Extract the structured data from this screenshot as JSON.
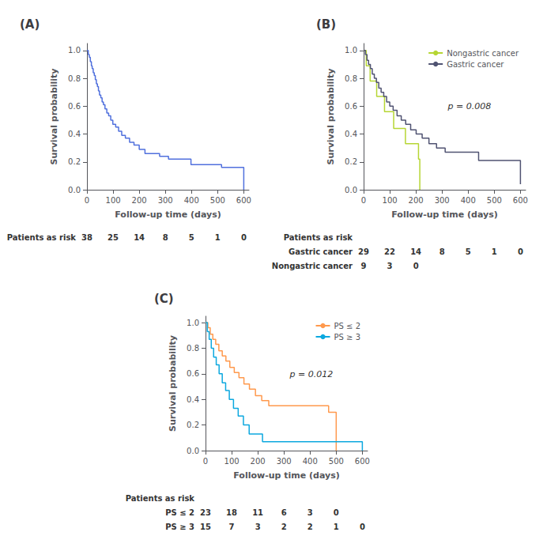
{
  "chart_data": [
    {
      "type": "step",
      "title": "(A)",
      "xlabel": "Follow-up time (days)",
      "ylabel": "Survival probability",
      "x": [
        0,
        5,
        9,
        13,
        17,
        20,
        24,
        28,
        32,
        36,
        40,
        44,
        48,
        53,
        58,
        63,
        69,
        76,
        83,
        91,
        99,
        110,
        121,
        133,
        147,
        163,
        180,
        200,
        222,
        248,
        278,
        312,
        352,
        398,
        452,
        515,
        560,
        600
      ],
      "values": [
        1.0,
        0.97,
        0.95,
        0.92,
        0.89,
        0.87,
        0.84,
        0.82,
        0.79,
        0.76,
        0.74,
        0.71,
        0.68,
        0.66,
        0.63,
        0.61,
        0.58,
        0.55,
        0.53,
        0.5,
        0.47,
        0.45,
        0.42,
        0.39,
        0.37,
        0.34,
        0.32,
        0.29,
        0.26,
        0.26,
        0.24,
        0.22,
        0.22,
        0.18,
        0.18,
        0.16,
        0.16,
        0.0
      ],
      "xlim": [
        0,
        620
      ],
      "ylim": [
        0.0,
        1.05
      ],
      "xticks": [
        0,
        100,
        200,
        300,
        400,
        500,
        600
      ],
      "yticks": [
        {
          "value": 0.0,
          "label": "0.0"
        },
        0.2,
        0.4,
        0.6,
        0.8,
        {
          "value": 1.0,
          "label": "1.0"
        }
      ],
      "grid": false,
      "at_risk": {
        "title": "Patients as risk",
        "rows": [
          {
            "x": [
              0,
              100,
              200,
              300,
              400,
              500,
              600
            ],
            "values": [
              38,
              25,
              14,
              8,
              5,
              1,
              0
            ]
          }
        ]
      }
    },
    {
      "type": "step",
      "title": "(B)",
      "xlabel": "Follow-up time (days)",
      "ylabel": "Survival probability",
      "series": [
        {
          "name": "Nongastric cancer",
          "x": [
            0,
            10,
            25,
            50,
            80,
            115,
            160,
            210,
            215
          ],
          "values": [
            1.0,
            0.89,
            0.78,
            0.67,
            0.56,
            0.44,
            0.33,
            0.22,
            0.0
          ]
        },
        {
          "name": "Gastric cancer",
          "x": [
            0,
            7,
            13,
            19,
            26,
            33,
            41,
            49,
            58,
            67,
            77,
            88,
            100,
            113,
            128,
            144,
            161,
            180,
            201,
            224,
            250,
            279,
            312,
            350,
            392,
            440,
            495,
            558,
            600
          ],
          "values": [
            1.0,
            0.97,
            0.93,
            0.9,
            0.87,
            0.83,
            0.8,
            0.77,
            0.73,
            0.7,
            0.67,
            0.63,
            0.6,
            0.57,
            0.53,
            0.5,
            0.47,
            0.43,
            0.4,
            0.37,
            0.33,
            0.3,
            0.27,
            0.27,
            0.27,
            0.21,
            0.21,
            0.21,
            0.04
          ]
        }
      ],
      "legend": "upper right",
      "annotations": [
        "p = 0.008"
      ],
      "xlim": [
        0,
        620
      ],
      "ylim": [
        0.0,
        1.05
      ],
      "xticks": [
        0,
        100,
        200,
        300,
        400,
        500,
        600
      ],
      "yticks": [
        {
          "value": 0.0,
          "label": "0.0"
        },
        0.2,
        0.4,
        0.6,
        0.8,
        {
          "value": 1.0,
          "label": "1.0"
        }
      ],
      "grid": false,
      "at_risk": {
        "title": "Patients as risk",
        "rows": [
          {
            "label": "Gastric cancer",
            "x": [
              0,
              100,
              200,
              300,
              400,
              500,
              600
            ],
            "values": [
              29,
              22,
              14,
              8,
              5,
              1,
              0
            ]
          },
          {
            "label": "Nongastric cancer",
            "x": [
              0,
              100,
              200
            ],
            "values": [
              9,
              3,
              0
            ]
          }
        ]
      }
    },
    {
      "type": "step",
      "title": "(C)",
      "xlabel": "Follow-up time (days)",
      "ylabel": "Survival probability",
      "series": [
        {
          "name": "PS ≤ 2",
          "x": [
            0,
            9,
            18,
            28,
            39,
            51,
            64,
            78,
            93,
            110,
            128,
            147,
            168,
            191,
            215,
            242,
            271,
            303,
            339,
            379,
            423,
            471,
            500
          ],
          "values": [
            1.0,
            0.96,
            0.91,
            0.87,
            0.83,
            0.78,
            0.74,
            0.7,
            0.65,
            0.61,
            0.57,
            0.52,
            0.48,
            0.43,
            0.39,
            0.35,
            0.35,
            0.35,
            0.35,
            0.35,
            0.35,
            0.3,
            0.0
          ]
        },
        {
          "name": "PS ≥ 3",
          "x": [
            0,
            7,
            14,
            22,
            31,
            41,
            52,
            64,
            77,
            91,
            107,
            125,
            145,
            167,
            191,
            218,
            248,
            281,
            318,
            360,
            407,
            460,
            520,
            600
          ],
          "values": [
            1.0,
            0.93,
            0.87,
            0.8,
            0.73,
            0.67,
            0.6,
            0.53,
            0.47,
            0.4,
            0.33,
            0.27,
            0.2,
            0.13,
            0.13,
            0.07,
            0.07,
            0.07,
            0.07,
            0.07,
            0.07,
            0.07,
            0.07,
            0.0
          ]
        }
      ],
      "legend": "upper right",
      "annotations": [
        "p = 0.012"
      ],
      "xlim": [
        0,
        620
      ],
      "ylim": [
        0.0,
        1.05
      ],
      "xticks": [
        0,
        100,
        200,
        300,
        400,
        500,
        600
      ],
      "yticks": [
        {
          "value": 0.0,
          "label": "0.0"
        },
        0.2,
        0.4,
        0.6,
        0.8,
        {
          "value": 1.0,
          "label": "1.0"
        }
      ],
      "grid": false,
      "at_risk": {
        "title": "Patients as risk",
        "rows": [
          {
            "label": "PS ≤ 2",
            "x": [
              0,
              100,
              200,
              300,
              400,
              500
            ],
            "values": [
              23,
              18,
              11,
              6,
              3,
              0
            ]
          },
          {
            "label": "PS ≥ 3",
            "x": [
              0,
              100,
              200,
              300,
              400,
              500,
              600
            ],
            "values": [
              15,
              7,
              3,
              2,
              2,
              1,
              0
            ]
          }
        ]
      }
    }
  ]
}
